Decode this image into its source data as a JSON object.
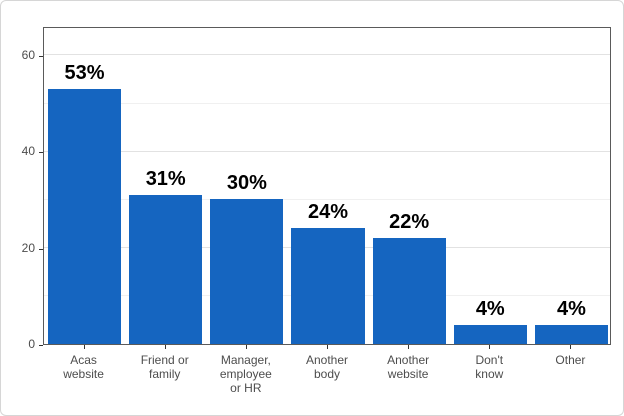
{
  "chart_data": {
    "type": "bar",
    "title": "",
    "xlabel": "",
    "ylabel": "",
    "categories": [
      "Acas website",
      "Friend or family",
      "Manager, employee or HR",
      "Another body",
      "Another website",
      "Don't know",
      "Other"
    ],
    "category_labels_wrapped": [
      "Acas\nwebsite",
      "Friend or\nfamily",
      "Manager,\nemployee\nor HR",
      "Another\nbody",
      "Another\nwebsite",
      "Don't\nknow",
      "Other"
    ],
    "values": [
      53,
      31,
      30,
      24,
      22,
      4,
      4
    ],
    "data_labels": [
      "53%",
      "31%",
      "30%",
      "24%",
      "22%",
      "4%",
      "4%"
    ],
    "ylim": [
      0,
      66
    ],
    "yticks": [
      0,
      20,
      40,
      60
    ],
    "yticks_minor": [
      10,
      30,
      50
    ],
    "grid": "horizontal",
    "legend": "none",
    "bar_color": "#1565c0",
    "value_label_color": "#000000",
    "axis_text_color": "#4d4d4d",
    "grid_major_color": "#e2e2e2",
    "grid_minor_color": "#f0f0f0",
    "panel_border_color": "#5a5a5a",
    "tick_color": "#333333"
  }
}
